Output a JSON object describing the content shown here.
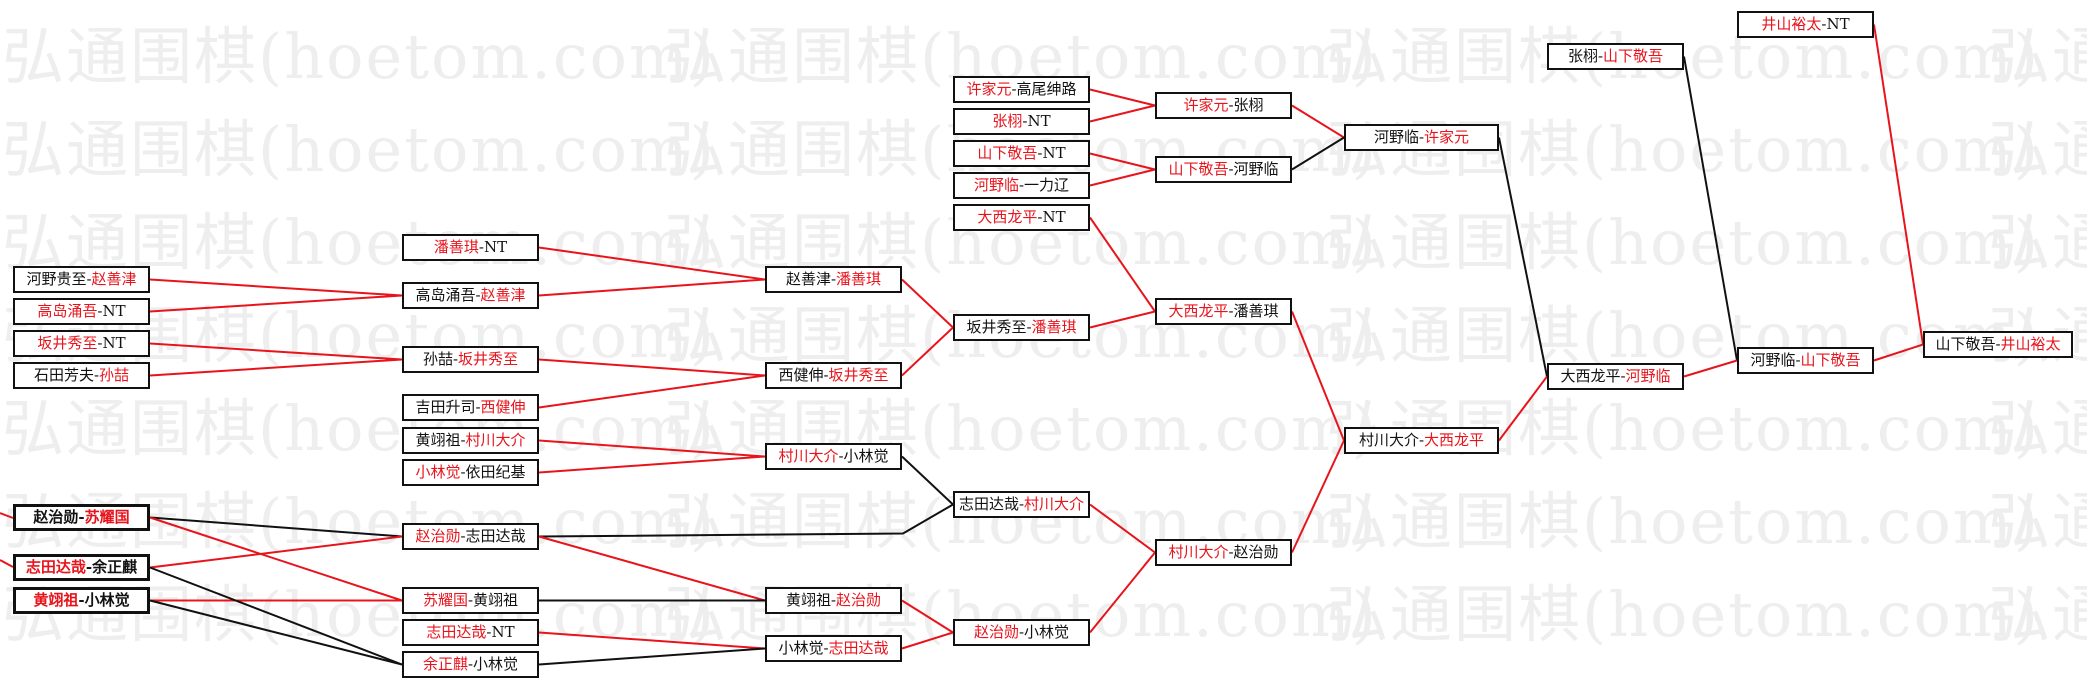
{
  "watermark": "弘通围棋(hoetom.com)",
  "colors": {
    "winner": "#e8141c",
    "loser": "#111111",
    "win_line": "#e8141c",
    "loss_line": "#111111"
  },
  "separator": "-",
  "matches": [
    {
      "p": [
        "河野贵至",
        "赵善津"
      ],
      "red": [
        false,
        true
      ]
    },
    {
      "p": [
        "高岛涌吾",
        "NT"
      ],
      "red": [
        true,
        false
      ]
    },
    {
      "p": [
        "坂井秀至",
        "NT"
      ],
      "red": [
        true,
        false
      ]
    },
    {
      "p": [
        "石田芳夫",
        "孙喆"
      ],
      "red": [
        false,
        true
      ]
    },
    {
      "p": [
        "赵治勋",
        "苏耀国"
      ],
      "red": [
        false,
        true
      ],
      "bold": true
    },
    {
      "p": [
        "志田达哉",
        "余正麒"
      ],
      "red": [
        true,
        false
      ],
      "bold": true
    },
    {
      "p": [
        "黄翊祖",
        "小林觉"
      ],
      "red": [
        true,
        false
      ],
      "bold": true
    },
    {
      "p": [
        "潘善琪",
        "NT"
      ],
      "red": [
        true,
        false
      ]
    },
    {
      "p": [
        "高岛涌吾",
        "赵善津"
      ],
      "red": [
        false,
        true
      ]
    },
    {
      "p": [
        "孙喆",
        "坂井秀至"
      ],
      "red": [
        false,
        true
      ]
    },
    {
      "p": [
        "吉田升司",
        "西健伸"
      ],
      "red": [
        false,
        true
      ]
    },
    {
      "p": [
        "黄翊祖",
        "村川大介"
      ],
      "red": [
        false,
        true
      ]
    },
    {
      "p": [
        "小林觉",
        "依田纪基"
      ],
      "red": [
        true,
        false
      ]
    },
    {
      "p": [
        "赵治勋",
        "志田达哉"
      ],
      "red": [
        true,
        false
      ]
    },
    {
      "p": [
        "苏耀国",
        "黄翊祖"
      ],
      "red": [
        true,
        false
      ]
    },
    {
      "p": [
        "志田达哉",
        "NT"
      ],
      "red": [
        true,
        false
      ]
    },
    {
      "p": [
        "余正麒",
        "小林觉"
      ],
      "red": [
        true,
        false
      ]
    },
    {
      "p": [
        "赵善津",
        "潘善琪"
      ],
      "red": [
        false,
        true
      ]
    },
    {
      "p": [
        "西健伸",
        "坂井秀至"
      ],
      "red": [
        false,
        true
      ]
    },
    {
      "p": [
        "村川大介",
        "小林觉"
      ],
      "red": [
        true,
        false
      ]
    },
    {
      "p": [
        "黄翊祖",
        "赵治勋"
      ],
      "red": [
        false,
        true
      ]
    },
    {
      "p": [
        "小林觉",
        "志田达哉"
      ],
      "red": [
        false,
        true
      ]
    },
    {
      "p": [
        "许家元",
        "高尾绅路"
      ],
      "red": [
        true,
        false
      ]
    },
    {
      "p": [
        "张栩",
        "NT"
      ],
      "red": [
        true,
        false
      ]
    },
    {
      "p": [
        "山下敬吾",
        "NT"
      ],
      "red": [
        true,
        false
      ]
    },
    {
      "p": [
        "河野临",
        "一力辽"
      ],
      "red": [
        true,
        false
      ]
    },
    {
      "p": [
        "大西龙平",
        "NT"
      ],
      "red": [
        true,
        false
      ]
    },
    {
      "p": [
        "坂井秀至",
        "潘善琪"
      ],
      "red": [
        false,
        true
      ]
    },
    {
      "p": [
        "志田达哉",
        "村川大介"
      ],
      "red": [
        false,
        true
      ]
    },
    {
      "p": [
        "赵治勋",
        "小林觉"
      ],
      "red": [
        true,
        false
      ]
    },
    {
      "p": [
        "许家元",
        "张栩"
      ],
      "red": [
        true,
        false
      ]
    },
    {
      "p": [
        "山下敬吾",
        "河野临"
      ],
      "red": [
        true,
        false
      ]
    },
    {
      "p": [
        "大西龙平",
        "潘善琪"
      ],
      "red": [
        true,
        false
      ]
    },
    {
      "p": [
        "村川大介",
        "赵治勋"
      ],
      "red": [
        true,
        false
      ]
    },
    {
      "p": [
        "河野临",
        "许家元"
      ],
      "red": [
        false,
        true
      ]
    },
    {
      "p": [
        "村川大介",
        "大西龙平"
      ],
      "red": [
        false,
        true
      ]
    },
    {
      "p": [
        "张栩",
        "山下敬吾"
      ],
      "red": [
        false,
        true
      ]
    },
    {
      "p": [
        "大西龙平",
        "河野临"
      ],
      "red": [
        false,
        true
      ]
    },
    {
      "p": [
        "井山裕太",
        "NT"
      ],
      "red": [
        true,
        false
      ]
    },
    {
      "p": [
        "河野临",
        "山下敬吾"
      ],
      "red": [
        false,
        true
      ]
    },
    {
      "p": [
        "山下敬吾",
        "井山裕太"
      ],
      "red": [
        false,
        true
      ]
    }
  ],
  "links": [
    {
      "from": 0,
      "to": 8,
      "win": true
    },
    {
      "from": 1,
      "to": 8,
      "win": true
    },
    {
      "from": 2,
      "to": 9,
      "win": true
    },
    {
      "from": 3,
      "to": 9,
      "win": true
    },
    {
      "from": 4,
      "to": 13,
      "win": false
    },
    {
      "from": 5,
      "to": 13,
      "win": true
    },
    {
      "from": 4,
      "to": 14,
      "win": true
    },
    {
      "from": 6,
      "to": 14,
      "win": true
    },
    {
      "from": 5,
      "to": 16,
      "win": false
    },
    {
      "from": 6,
      "to": 16,
      "win": false
    },
    {
      "from": 7,
      "to": 17,
      "win": true
    },
    {
      "from": 8,
      "to": 17,
      "win": true
    },
    {
      "from": 9,
      "to": 18,
      "win": true
    },
    {
      "from": 10,
      "to": 18,
      "win": true
    },
    {
      "from": 11,
      "to": 19,
      "win": true
    },
    {
      "from": 12,
      "to": 19,
      "win": true
    },
    {
      "from": 13,
      "to": 28,
      "win": false
    },
    {
      "from": 13,
      "to": 20,
      "win": true
    },
    {
      "from": 14,
      "to": 20,
      "win": false
    },
    {
      "from": 15,
      "to": 21,
      "win": true
    },
    {
      "from": 16,
      "to": 21,
      "win": false
    },
    {
      "from": 17,
      "to": 27,
      "win": true
    },
    {
      "from": 18,
      "to": 27,
      "win": true
    },
    {
      "from": 19,
      "to": 28,
      "win": false
    },
    {
      "from": 20,
      "to": 29,
      "win": true
    },
    {
      "from": 21,
      "to": 29,
      "win": true
    },
    {
      "from": 22,
      "to": 30,
      "win": true
    },
    {
      "from": 23,
      "to": 30,
      "win": true
    },
    {
      "from": 24,
      "to": 31,
      "win": true
    },
    {
      "from": 25,
      "to": 31,
      "win": true
    },
    {
      "from": 26,
      "to": 32,
      "win": true
    },
    {
      "from": 27,
      "to": 32,
      "win": true
    },
    {
      "from": 28,
      "to": 33,
      "win": true
    },
    {
      "from": 29,
      "to": 33,
      "win": true
    },
    {
      "from": 30,
      "to": 34,
      "win": true
    },
    {
      "from": 31,
      "to": 34,
      "win": false
    },
    {
      "from": 32,
      "to": 35,
      "win": true
    },
    {
      "from": 33,
      "to": 35,
      "win": true
    },
    {
      "from": 34,
      "to": 37,
      "win": false
    },
    {
      "from": 35,
      "to": 37,
      "win": true
    },
    {
      "from": 36,
      "to": 39,
      "win": false
    },
    {
      "from": 37,
      "to": 39,
      "win": true
    },
    {
      "from": 38,
      "to": 40,
      "win": true
    },
    {
      "from": 39,
      "to": 40,
      "win": true
    }
  ]
}
